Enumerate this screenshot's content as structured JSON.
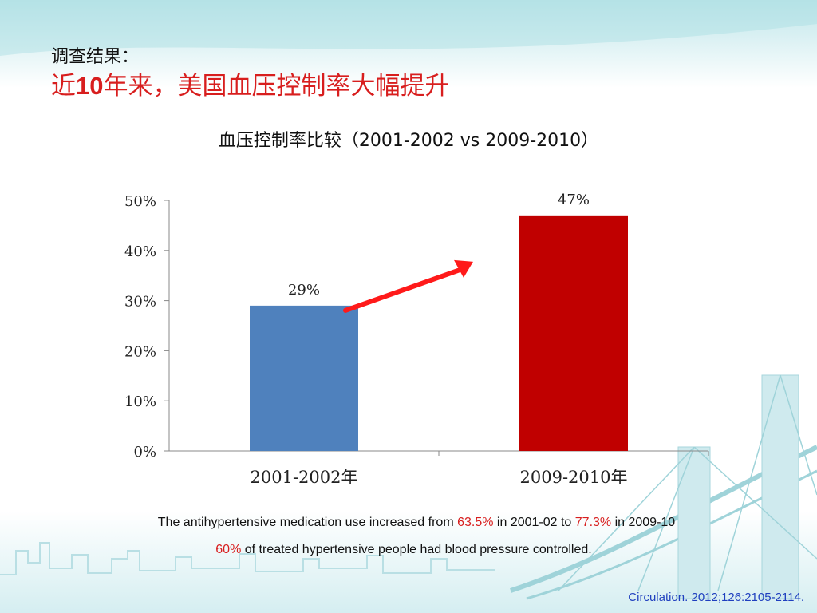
{
  "header": {
    "kicker": "调查结果：",
    "headline_prefix": "近",
    "headline_number": "10",
    "headline_suffix": "年来，美国血压控制率大幅提升"
  },
  "chart_data": {
    "type": "bar",
    "title": "血压控制率比较（2001-2002 vs 2009-2010）",
    "categories": [
      "2001-2002年",
      "2009-2010年"
    ],
    "values": [
      29,
      47
    ],
    "data_labels": [
      "29%",
      "47%"
    ],
    "bar_colors": [
      "#4f81bd",
      "#c00000"
    ],
    "ylim": [
      0,
      50
    ],
    "yticks": [
      0,
      10,
      20,
      30,
      40,
      50
    ],
    "ytick_labels": [
      "0%",
      "10%",
      "20%",
      "30%",
      "40%",
      "50%"
    ],
    "xlabel": "",
    "ylabel": "",
    "grid": false,
    "legend": "none",
    "annotation": "red upward arrow from first bar to second bar",
    "arrow_color": "#ff1a1a"
  },
  "notes": {
    "line1_a": "The antihypertensive medication use increased from ",
    "line1_v1": "63.5%",
    "line1_b": " in 2001-02 to ",
    "line1_v2": "77.3%",
    "line1_c": " in 2009-10",
    "line2_v": "60%",
    "line2_a": " of treated hypertensive people had blood pressure controlled."
  },
  "citation": "Circulation. 2012;126:2105-2114."
}
